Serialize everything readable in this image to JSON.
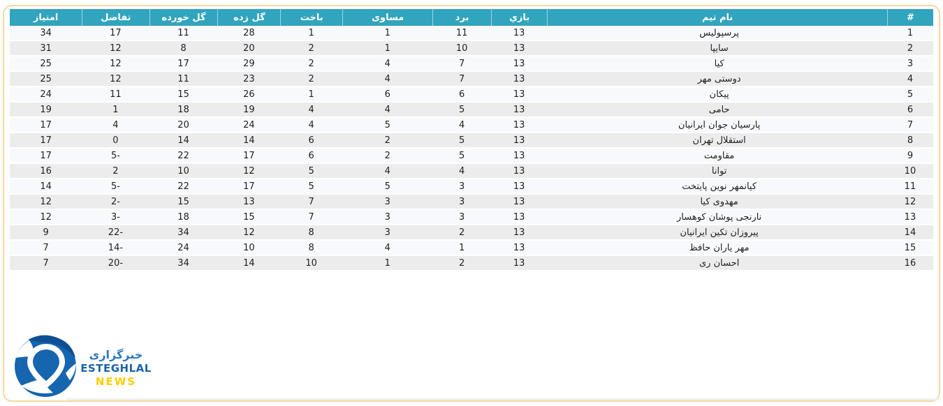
{
  "colors": {
    "header_bg": "#31a4be",
    "row_light": "#f8f9fc",
    "row_alt": "#ececec",
    "frame_border": "#f6d7a0",
    "text": "#1f1f1f",
    "logo_blue": "#1665af",
    "logo_dark_blue": "#1b63ab",
    "logo_yellow": "#fdd000"
  },
  "table": {
    "columns": [
      {
        "key": "rank",
        "label": "#"
      },
      {
        "key": "team",
        "label": "نام تیم"
      },
      {
        "key": "played",
        "label": "بازي"
      },
      {
        "key": "won",
        "label": "برد"
      },
      {
        "key": "drawn",
        "label": "مساوی"
      },
      {
        "key": "lost",
        "label": "باخت"
      },
      {
        "key": "goals_for",
        "label": "گل زده"
      },
      {
        "key": "goals_against",
        "label": "گل خورده"
      },
      {
        "key": "goal_diff",
        "label": "تفاضل"
      },
      {
        "key": "points",
        "label": "امتیاز"
      }
    ],
    "rows": [
      {
        "rank": "1",
        "team": "پرسپولیس",
        "played": "13",
        "won": "11",
        "drawn": "1",
        "lost": "1",
        "goals_for": "28",
        "goals_against": "11",
        "goal_diff": "17",
        "points": "34"
      },
      {
        "rank": "2",
        "team": "سایپا",
        "played": "13",
        "won": "10",
        "drawn": "1",
        "lost": "2",
        "goals_for": "20",
        "goals_against": "8",
        "goal_diff": "12",
        "points": "31"
      },
      {
        "rank": "3",
        "team": "کیا",
        "played": "13",
        "won": "7",
        "drawn": "4",
        "lost": "2",
        "goals_for": "29",
        "goals_against": "17",
        "goal_diff": "12",
        "points": "25"
      },
      {
        "rank": "4",
        "team": "دوستی مهر",
        "played": "13",
        "won": "7",
        "drawn": "4",
        "lost": "2",
        "goals_for": "23",
        "goals_against": "11",
        "goal_diff": "12",
        "points": "25"
      },
      {
        "rank": "5",
        "team": "پیکان",
        "played": "13",
        "won": "6",
        "drawn": "6",
        "lost": "1",
        "goals_for": "26",
        "goals_against": "15",
        "goal_diff": "11",
        "points": "24"
      },
      {
        "rank": "6",
        "team": "حامی",
        "played": "13",
        "won": "5",
        "drawn": "4",
        "lost": "4",
        "goals_for": "19",
        "goals_against": "18",
        "goal_diff": "1",
        "points": "19"
      },
      {
        "rank": "7",
        "team": "پارسیان جوان ایرانیان",
        "played": "13",
        "won": "4",
        "drawn": "5",
        "lost": "4",
        "goals_for": "24",
        "goals_against": "20",
        "goal_diff": "4",
        "points": "17"
      },
      {
        "rank": "8",
        "team": "استقلال تهران",
        "played": "13",
        "won": "5",
        "drawn": "2",
        "lost": "6",
        "goals_for": "14",
        "goals_against": "14",
        "goal_diff": "0",
        "points": "17"
      },
      {
        "rank": "9",
        "team": "مقاومت",
        "played": "13",
        "won": "5",
        "drawn": "2",
        "lost": "6",
        "goals_for": "17",
        "goals_against": "22",
        "goal_diff": "5-",
        "points": "17"
      },
      {
        "rank": "10",
        "team": "توانا",
        "played": "13",
        "won": "4",
        "drawn": "4",
        "lost": "5",
        "goals_for": "12",
        "goals_against": "10",
        "goal_diff": "2",
        "points": "16"
      },
      {
        "rank": "11",
        "team": "کیانمهر نوین پایتخت",
        "played": "13",
        "won": "3",
        "drawn": "5",
        "lost": "5",
        "goals_for": "17",
        "goals_against": "22",
        "goal_diff": "5-",
        "points": "14"
      },
      {
        "rank": "12",
        "team": "مهدوی کیا",
        "played": "13",
        "won": "3",
        "drawn": "3",
        "lost": "7",
        "goals_for": "13",
        "goals_against": "15",
        "goal_diff": "2-",
        "points": "12"
      },
      {
        "rank": "13",
        "team": "نارنجی پوشان کوهسار",
        "played": "13",
        "won": "3",
        "drawn": "3",
        "lost": "7",
        "goals_for": "15",
        "goals_against": "18",
        "goal_diff": "3-",
        "points": "12"
      },
      {
        "rank": "14",
        "team": "پیروزان تکین ایرانیان",
        "played": "13",
        "won": "2",
        "drawn": "3",
        "lost": "8",
        "goals_for": "12",
        "goals_against": "34",
        "goal_diff": "22-",
        "points": "9"
      },
      {
        "rank": "15",
        "team": "مهر یاران حافظ",
        "played": "13",
        "won": "1",
        "drawn": "4",
        "lost": "8",
        "goals_for": "10",
        "goals_against": "24",
        "goal_diff": "14-",
        "points": "7"
      },
      {
        "rank": "16",
        "team": "احسان ری",
        "played": "13",
        "won": "2",
        "drawn": "1",
        "lost": "10",
        "goals_for": "14",
        "goals_against": "34",
        "goal_diff": "20-",
        "points": "7"
      }
    ]
  },
  "logo": {
    "line_fa": "خبرگزاری",
    "line_en": "ESTEGHLAL",
    "line_news": "NEWS"
  }
}
